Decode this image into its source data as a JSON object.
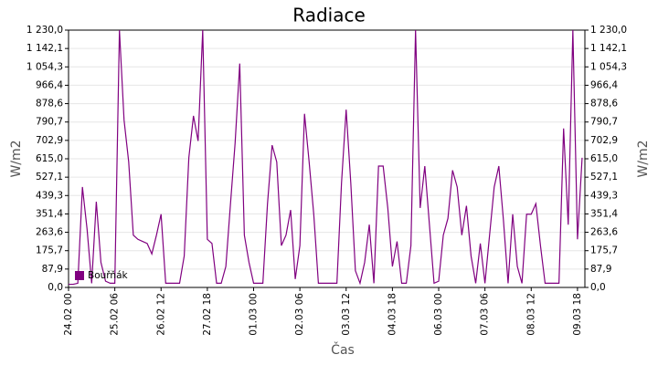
{
  "chart_data": {
    "type": "line",
    "title": "Radiace",
    "xlabel": "Čas",
    "ylabel": "W/m2",
    "y2label": "W/m2",
    "categories": [
      "24.02 00",
      null,
      null,
      null,
      null,
      null,
      null,
      null,
      null,
      null,
      "25.02 06",
      null,
      null,
      null,
      null,
      null,
      null,
      null,
      null,
      null,
      "26.02 12",
      null,
      null,
      null,
      null,
      null,
      null,
      null,
      null,
      null,
      "27.02 18",
      null,
      null,
      null,
      null,
      null,
      null,
      null,
      null,
      null,
      "01.03 00",
      null,
      null,
      null,
      null,
      null,
      null,
      null,
      null,
      null,
      "02.03 06",
      null,
      null,
      null,
      null,
      null,
      null,
      null,
      null,
      null,
      "03.03 12",
      null,
      null,
      null,
      null,
      null,
      null,
      null,
      null,
      null,
      "04.03 18",
      null,
      null,
      null,
      null,
      null,
      null,
      null,
      null,
      null,
      "06.03 00",
      null,
      null,
      null,
      null,
      null,
      null,
      null,
      null,
      null,
      "07.03 06",
      null,
      null,
      null,
      null,
      null,
      null,
      null,
      null,
      null,
      "08.03 12",
      null,
      null,
      null,
      null,
      null,
      null,
      null,
      null,
      null,
      "09.03 18",
      null
    ],
    "series": [
      {
        "name": "Bouřňák",
        "color": "#800080",
        "values": [
          15,
          15,
          20,
          480,
          280,
          20,
          410,
          120,
          30,
          20,
          20,
          1230,
          800,
          600,
          250,
          230,
          220,
          210,
          160,
          250,
          350,
          20,
          20,
          20,
          20,
          150,
          620,
          820,
          700,
          1230,
          230,
          210,
          20,
          20,
          100,
          400,
          690,
          1070,
          250,
          120,
          20,
          20,
          20,
          400,
          680,
          600,
          200,
          250,
          370,
          40,
          200,
          830,
          600,
          350,
          20,
          20,
          20,
          20,
          20,
          500,
          850,
          500,
          80,
          20,
          120,
          300,
          20,
          580,
          580,
          380,
          100,
          220,
          20,
          20,
          200,
          1230,
          380,
          580,
          300,
          20,
          30,
          250,
          330,
          560,
          480,
          250,
          390,
          150,
          20,
          210,
          20,
          250,
          480,
          580,
          320,
          20,
          350,
          100,
          20,
          350,
          350,
          400,
          200,
          20,
          20,
          20,
          20,
          760,
          300,
          1230,
          230,
          620
        ]
      }
    ],
    "ylim": [
      0,
      1230
    ],
    "yticks": [
      {
        "value": 0,
        "label": "0,0"
      },
      {
        "value": 87.9,
        "label": "87,9"
      },
      {
        "value": 175.7,
        "label": "175,7"
      },
      {
        "value": 263.6,
        "label": "263,6"
      },
      {
        "value": 351.4,
        "label": "351,4"
      },
      {
        "value": 439.3,
        "label": "439,3"
      },
      {
        "value": 527.1,
        "label": "527,1"
      },
      {
        "value": 615,
        "label": "615,0"
      },
      {
        "value": 702.9,
        "label": "702,9"
      },
      {
        "value": 790.7,
        "label": "790,7"
      },
      {
        "value": 878.6,
        "label": "878,6"
      },
      {
        "value": 966.4,
        "label": "966,4"
      },
      {
        "value": 1054.3,
        "label": "1 054,3"
      },
      {
        "value": 1142.1,
        "label": "1 142,1"
      },
      {
        "value": 1230,
        "label": "1 230,0"
      }
    ],
    "y2lim": [
      0,
      1230
    ],
    "y2ticks": [
      {
        "value": 0,
        "label": "0,0"
      },
      {
        "value": 87.9,
        "label": "87,9"
      },
      {
        "value": 175.7,
        "label": "175,7"
      },
      {
        "value": 263.6,
        "label": "263,6"
      },
      {
        "value": 351.4,
        "label": "351,4"
      },
      {
        "value": 439.3,
        "label": "439,3"
      },
      {
        "value": 527.1,
        "label": "527,1"
      },
      {
        "value": 615,
        "label": "615,0"
      },
      {
        "value": 702.9,
        "label": "702,9"
      },
      {
        "value": 790.7,
        "label": "790,7"
      },
      {
        "value": 878.6,
        "label": "878,6"
      },
      {
        "value": 966.4,
        "label": "966,4"
      },
      {
        "value": 1054.3,
        "label": "1 054,3"
      },
      {
        "value": 1142.1,
        "label": "1 142,1"
      },
      {
        "value": 1230,
        "label": "1 230,0"
      }
    ],
    "grid": true,
    "legend": "lower left"
  }
}
